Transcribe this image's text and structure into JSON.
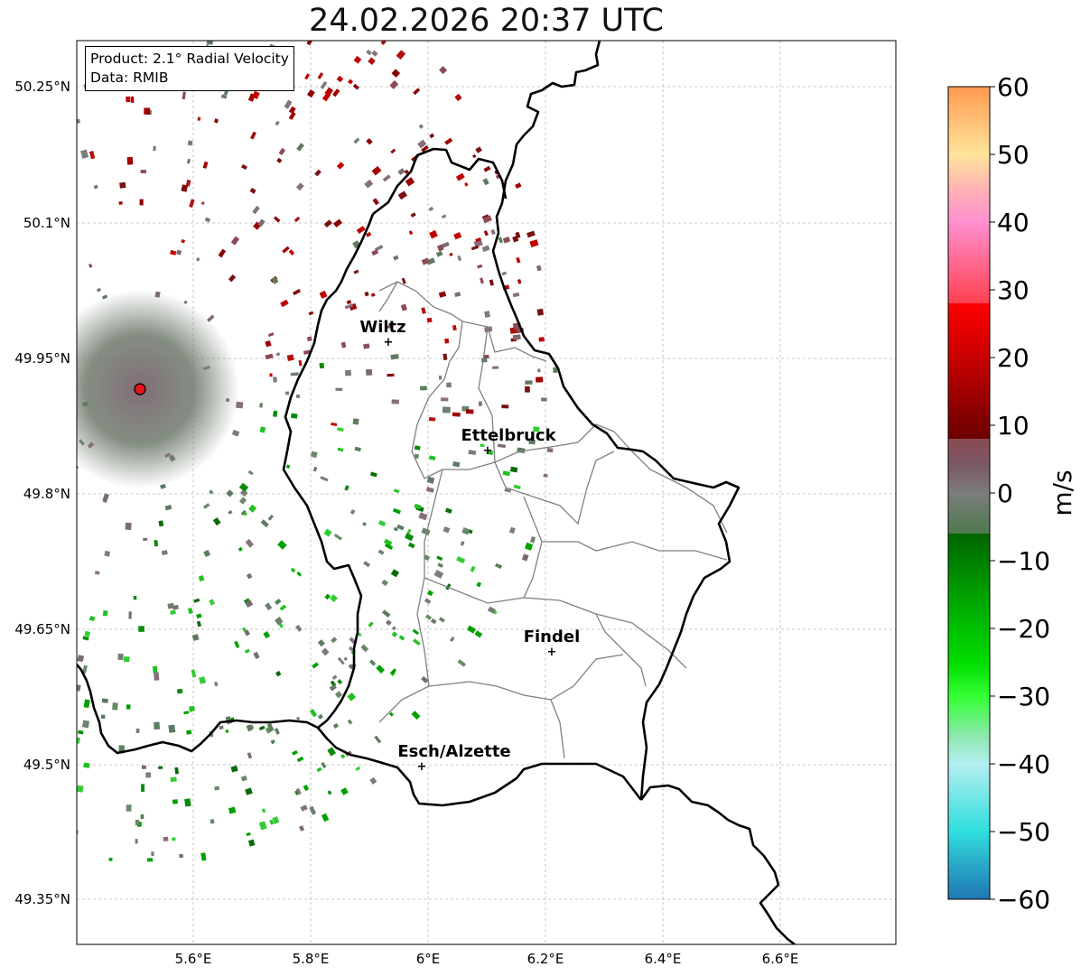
{
  "title": "24.02.2026 20:37 UTC",
  "info": {
    "product": "Product: 2.1° Radial Velocity",
    "data_source": "Data: RMIB"
  },
  "axes": {
    "lat_labels": [
      "50.25°N",
      "50.1°N",
      "49.95°N",
      "49.8°N",
      "49.65°N",
      "49.5°N",
      "49.35°N"
    ],
    "lon_labels": [
      "5.6°E",
      "5.8°E",
      "6°E",
      "6.2°E",
      "6.4°E",
      "6.6°E"
    ]
  },
  "cities": [
    {
      "name": "Wiltz"
    },
    {
      "name": "Ettelbruck"
    },
    {
      "name": "Findel"
    },
    {
      "name": "Esch/Alzette"
    }
  ],
  "colorbar": {
    "unit": "m/s",
    "min": -60,
    "max": 60,
    "ticks": [
      "60",
      "50",
      "40",
      "30",
      "20",
      "10",
      "0",
      "−10",
      "−20",
      "−30",
      "−40",
      "−50",
      "−60"
    ]
  },
  "colors": {
    "radar_site": "#e8141c",
    "border": "#000000",
    "canton_border": "#808080",
    "colorbar_stops": [
      {
        "v": -60,
        "c": "#1f77b4"
      },
      {
        "v": -55,
        "c": "#2aa8c8"
      },
      {
        "v": -50,
        "c": "#30dede"
      },
      {
        "v": -40,
        "c": "#b4eef0"
      },
      {
        "v": -36,
        "c": "#8ee8b0"
      },
      {
        "v": -30,
        "c": "#33ff33"
      },
      {
        "v": -25,
        "c": "#00dd00"
      },
      {
        "v": -15,
        "c": "#00a000"
      },
      {
        "v": -6,
        "c": "#006400"
      },
      {
        "v": -6,
        "c": "#4e7a4e"
      },
      {
        "v": 0,
        "c": "#7c7c7c"
      },
      {
        "v": 4,
        "c": "#7b5a66"
      },
      {
        "v": 8,
        "c": "#8a4a52"
      },
      {
        "v": 8,
        "c": "#6b0000"
      },
      {
        "v": 20,
        "c": "#c80000"
      },
      {
        "v": 28,
        "c": "#ff0000"
      },
      {
        "v": 28,
        "c": "#ff4050"
      },
      {
        "v": 40,
        "c": "#ff90d0"
      },
      {
        "v": 45,
        "c": "#ffb4b4"
      },
      {
        "v": 50,
        "c": "#ffe49a"
      },
      {
        "v": 60,
        "c": "#ff9a50"
      }
    ]
  }
}
